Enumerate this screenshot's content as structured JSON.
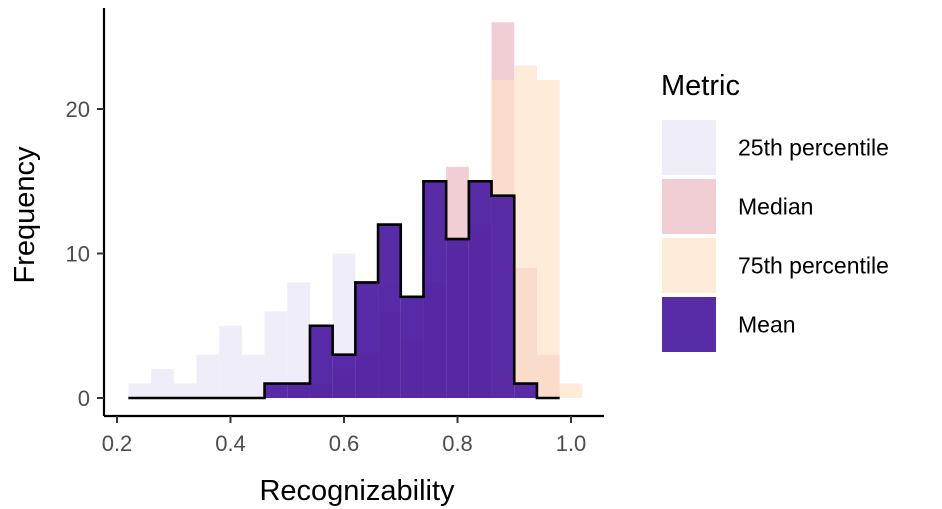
{
  "chart_data": {
    "type": "histogram",
    "xlabel": "Recognizability",
    "ylabel": "Frequency",
    "xlim": [
      0.2,
      1.02
    ],
    "ylim": [
      0,
      26.5
    ],
    "x_ticks": [
      "0.2",
      "0.4",
      "0.6",
      "0.8",
      "1.0"
    ],
    "y_ticks": [
      "0",
      "10",
      "20"
    ],
    "bin_width": 0.04,
    "grid": false,
    "legend": {
      "title": "Metric",
      "position": "right",
      "entries": [
        "25th percentile",
        "Median",
        "75th percentile",
        "Mean"
      ]
    },
    "series": [
      {
        "name": "25th percentile",
        "color": "#efedf8",
        "bins": [
          {
            "start": 0.22,
            "count": 1
          },
          {
            "start": 0.26,
            "count": 2
          },
          {
            "start": 0.3,
            "count": 1
          },
          {
            "start": 0.34,
            "count": 3
          },
          {
            "start": 0.38,
            "count": 5
          },
          {
            "start": 0.42,
            "count": 3
          },
          {
            "start": 0.46,
            "count": 6
          },
          {
            "start": 0.5,
            "count": 8
          },
          {
            "start": 0.54,
            "count": 5
          },
          {
            "start": 0.58,
            "count": 10
          },
          {
            "start": 0.62,
            "count": 7
          },
          {
            "start": 0.66,
            "count": 8
          },
          {
            "start": 0.7,
            "count": 7
          },
          {
            "start": 0.74,
            "count": 10
          },
          {
            "start": 0.78,
            "count": 8
          },
          {
            "start": 0.82,
            "count": 4
          },
          {
            "start": 0.86,
            "count": 0
          }
        ]
      },
      {
        "name": "Median",
        "color": "#e8b4bc",
        "bins": [
          {
            "start": 0.5,
            "count": 1
          },
          {
            "start": 0.54,
            "count": 1
          },
          {
            "start": 0.58,
            "count": 2
          },
          {
            "start": 0.62,
            "count": 3
          },
          {
            "start": 0.66,
            "count": 6
          },
          {
            "start": 0.7,
            "count": 4
          },
          {
            "start": 0.74,
            "count": 8
          },
          {
            "start": 0.78,
            "count": 16
          },
          {
            "start": 0.82,
            "count": 12
          },
          {
            "start": 0.86,
            "count": 26
          },
          {
            "start": 0.9,
            "count": 9
          },
          {
            "start": 0.94,
            "count": 3
          }
        ]
      },
      {
        "name": "75th percentile",
        "color": "#fde3c8",
        "bins": [
          {
            "start": 0.86,
            "count": 22
          },
          {
            "start": 0.9,
            "count": 23
          },
          {
            "start": 0.94,
            "count": 22
          },
          {
            "start": 0.98,
            "count": 1
          }
        ]
      },
      {
        "name": "Mean",
        "color": "#4a1aa0",
        "outline": "#000000",
        "bins": [
          {
            "start": 0.22,
            "count": 0
          },
          {
            "start": 0.26,
            "count": 0
          },
          {
            "start": 0.3,
            "count": 0
          },
          {
            "start": 0.34,
            "count": 0
          },
          {
            "start": 0.38,
            "count": 0
          },
          {
            "start": 0.42,
            "count": 0
          },
          {
            "start": 0.46,
            "count": 1
          },
          {
            "start": 0.5,
            "count": 1
          },
          {
            "start": 0.54,
            "count": 5
          },
          {
            "start": 0.58,
            "count": 3
          },
          {
            "start": 0.62,
            "count": 8
          },
          {
            "start": 0.66,
            "count": 12
          },
          {
            "start": 0.7,
            "count": 7
          },
          {
            "start": 0.74,
            "count": 15
          },
          {
            "start": 0.78,
            "count": 11
          },
          {
            "start": 0.82,
            "count": 15
          },
          {
            "start": 0.86,
            "count": 14
          },
          {
            "start": 0.9,
            "count": 1
          },
          {
            "start": 0.94,
            "count": 0
          }
        ]
      }
    ]
  }
}
